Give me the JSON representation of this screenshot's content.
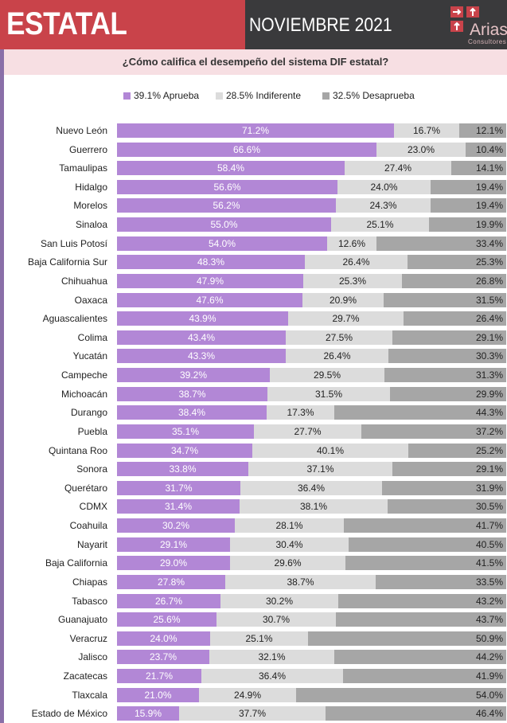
{
  "header": {
    "title": "ESTATAL",
    "date": "NOVIEMBRE 2021",
    "logo_name": "Arias",
    "logo_sub": "Consultores"
  },
  "question": "¿Cómo califica el desempeño del sistema DIF estatal?",
  "colors": {
    "aprueba": "#b287d6",
    "indiferente": "#dcdcdc",
    "desaprueba": "#a6a6a6",
    "header_red": "#c9434a",
    "header_dark": "#3a3a3c"
  },
  "legend": [
    {
      "label": "39.1% Aprueba",
      "key": "aprueba"
    },
    {
      "label": "28.5% Indiferente",
      "key": "indiferente"
    },
    {
      "label": "32.5% Desaprueba",
      "key": "desaprueba"
    }
  ],
  "chart_data": {
    "type": "bar",
    "stacked": true,
    "orientation": "horizontal",
    "legend_position": "top",
    "title": "¿Cómo califica el desempeño del sistema DIF estatal?",
    "categories": [
      "Nuevo León",
      "Guerrero",
      "Tamaulipas",
      "Hidalgo",
      "Morelos",
      "Sinaloa",
      "San Luis Potosí",
      "Baja California Sur",
      "Chihuahua",
      "Oaxaca",
      "Aguascalientes",
      "Colima",
      "Yucatán",
      "Campeche",
      "Michoacán",
      "Durango",
      "Puebla",
      "Quintana Roo",
      "Sonora",
      "Querétaro",
      "CDMX",
      "Coahuila",
      "Nayarit",
      "Baja California",
      "Chiapas",
      "Tabasco",
      "Guanajuato",
      "Veracruz",
      "Jalisco",
      "Zacatecas",
      "Tlaxcala",
      "Estado de México"
    ],
    "series": [
      {
        "name": "Aprueba",
        "values": [
          71.2,
          66.6,
          58.4,
          56.6,
          56.2,
          55.0,
          54.0,
          48.3,
          47.9,
          47.6,
          43.9,
          43.4,
          43.3,
          39.2,
          38.7,
          38.4,
          35.1,
          34.7,
          33.8,
          31.7,
          31.4,
          30.2,
          29.1,
          29.0,
          27.8,
          26.7,
          25.6,
          24.0,
          23.7,
          21.7,
          21.0,
          15.9
        ]
      },
      {
        "name": "Indiferente",
        "values": [
          16.7,
          23.0,
          27.4,
          24.0,
          24.3,
          25.1,
          12.6,
          26.4,
          25.3,
          20.9,
          29.7,
          27.5,
          26.4,
          29.5,
          31.5,
          17.3,
          27.7,
          40.1,
          37.1,
          36.4,
          38.1,
          28.1,
          30.4,
          29.6,
          38.7,
          30.2,
          30.7,
          25.1,
          32.1,
          36.4,
          24.9,
          37.7
        ]
      },
      {
        "name": "Desaprueba",
        "values": [
          12.1,
          10.4,
          14.1,
          19.4,
          19.4,
          19.9,
          33.4,
          25.3,
          26.8,
          31.5,
          26.4,
          29.1,
          30.3,
          31.3,
          29.9,
          44.3,
          37.2,
          25.2,
          29.1,
          31.9,
          30.5,
          41.7,
          40.5,
          41.5,
          33.5,
          43.2,
          43.7,
          50.9,
          44.2,
          41.9,
          54.0,
          46.4
        ]
      }
    ],
    "value_labels": [
      [
        "71.2%",
        "16.7%",
        "12.1%"
      ],
      [
        "66.6%",
        "23.0%",
        "10.4%"
      ],
      [
        "58.4%",
        "27.4%",
        "14.1%"
      ],
      [
        "56.6%",
        "24.0%",
        "19.4%"
      ],
      [
        "56.2%",
        "24.3%",
        "19.4%"
      ],
      [
        "55.0%",
        "25.1%",
        "19.9%"
      ],
      [
        "54.0%",
        "12.6%",
        "33.4%"
      ],
      [
        "48.3%",
        "26.4%",
        "25.3%"
      ],
      [
        "47.9%",
        "25.3%",
        "26.8%"
      ],
      [
        "47.6%",
        "20.9%",
        "31.5%"
      ],
      [
        "43.9%",
        "29.7%",
        "26.4%"
      ],
      [
        "43.4%",
        "27.5%",
        "29.1%"
      ],
      [
        "43.3%",
        "26.4%",
        "30.3%"
      ],
      [
        "39.2%",
        "29.5%",
        "31.3%"
      ],
      [
        "38.7%",
        "31.5%",
        "29.9%"
      ],
      [
        "38.4%",
        "17.3%",
        "44.3%"
      ],
      [
        "35.1%",
        "27.7%",
        "37.2%"
      ],
      [
        "34.7%",
        "40.1%",
        "25.2%"
      ],
      [
        "33.8%",
        "37.1%",
        "29.1%"
      ],
      [
        "31.7%",
        "36.4%",
        "31.9%"
      ],
      [
        "31.4%",
        "38.1%",
        "30.5%"
      ],
      [
        "30.2%",
        "28.1%",
        "41.7%"
      ],
      [
        "29.1%",
        "30.4%",
        "40.5%"
      ],
      [
        "29.0%",
        "29.6%",
        "41.5%"
      ],
      [
        "27.8%",
        "38.7%",
        "33.5%"
      ],
      [
        "26.7%",
        "30.2%",
        "43.2%"
      ],
      [
        "25.6%",
        "30.7%",
        "43.7%"
      ],
      [
        "24.0%",
        "25.1%",
        "50.9%"
      ],
      [
        "23.7%",
        "32.1%",
        "44.2%"
      ],
      [
        "21.7%",
        "36.4%",
        "41.9%"
      ],
      [
        "21.0%",
        "24.9%",
        "54.0%"
      ],
      [
        "15.9%",
        "37.7%",
        "46.4%"
      ]
    ]
  }
}
